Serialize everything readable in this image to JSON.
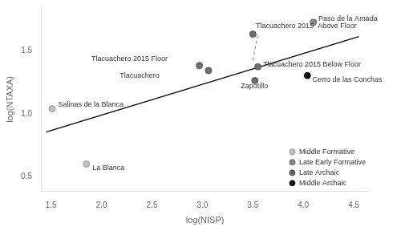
{
  "chart_data": {
    "type": "scatter",
    "xlabel": "log(NISP)",
    "ylabel": "log(NTAXA)",
    "points": [
      {
        "label": "Salinas de la Blanca",
        "x": 1.51,
        "y": 1.04,
        "color": "#c0c0c0",
        "edgecolor": "#888888",
        "category": "Middle Formative",
        "label_x": 1.57,
        "label_y": 1.07
      },
      {
        "label": "La Blanca",
        "x": 1.85,
        "y": 0.6,
        "color": "#c0c0c0",
        "edgecolor": "#888888",
        "category": "Middle Formative",
        "label_x": 1.91,
        "label_y": 0.57
      },
      {
        "label": "Tlacuachero 2015 Floor",
        "x": 2.97,
        "y": 1.385,
        "color": "#707070",
        "edgecolor": "#444444",
        "category": "Late Archaic",
        "label_x": 1.9,
        "label_y": 1.435
      },
      {
        "label": "Tlacuachero",
        "x": 3.06,
        "y": 1.345,
        "color": "#707070",
        "edgecolor": "#444444",
        "category": "Late Archaic",
        "label_x": 2.18,
        "label_y": 1.305
      },
      {
        "label": "Tlacuachero 2015  Above Floor",
        "x": 3.5,
        "y": 1.635,
        "color": "#707070",
        "edgecolor": "#444444",
        "category": "Late Archaic",
        "label_x": 3.53,
        "label_y": 1.7
      },
      {
        "label": "Tlacuachero 2015 Below Floor",
        "x": 3.55,
        "y": 1.375,
        "color": "#707070",
        "edgecolor": "#444444",
        "category": "Late Archaic",
        "label_x": 3.6,
        "label_y": 1.39
      },
      {
        "label": "Zapotillo",
        "x": 3.52,
        "y": 1.265,
        "color": "#707070",
        "edgecolor": "#444444",
        "category": "Late Archaic",
        "label_x": 3.38,
        "label_y": 1.22
      },
      {
        "label": "Cerro de las Conchas",
        "x": 4.04,
        "y": 1.305,
        "color": "#111111",
        "edgecolor": "#111111",
        "category": "Middle Archaic",
        "label_x": 4.09,
        "label_y": 1.27
      },
      {
        "label": "Paso de la Amada",
        "x": 4.1,
        "y": 1.73,
        "color": "#888888",
        "edgecolor": "#555555",
        "category": "Late Early Formative",
        "label_x": 4.15,
        "label_y": 1.755
      }
    ],
    "regression_line": {
      "x": [
        1.45,
        4.55
      ],
      "y": [
        0.855,
        1.615
      ],
      "color": "#000000"
    },
    "dashed_line": {
      "x": [
        3.5,
        3.55
      ],
      "y": [
        1.425,
        1.635
      ],
      "color": "#666666",
      "line_style": "dashed"
    },
    "legend_entries": [
      {
        "name": "Middle Formative",
        "color": "#c0c0c0",
        "edgecolor": "#888888"
      },
      {
        "name": "Late Early Formative",
        "color": "#888888",
        "edgecolor": "#555555"
      },
      {
        "name": "Late Archaic",
        "color": "#606060",
        "edgecolor": "#404040"
      },
      {
        "name": "Middle Archaic",
        "color": "#111111",
        "edgecolor": "#111111"
      }
    ],
    "legend": "lower right",
    "grid": false,
    "xlim": [
      1.4,
      4.65
    ],
    "ylim": [
      0.38,
      1.85
    ],
    "xticks": [
      1.5,
      {
        "value": 2.0,
        "label": "2.0"
      },
      2.5,
      {
        "value": 3.0,
        "label": "3.0"
      },
      3.5,
      {
        "value": 4.0,
        "label": "4.0"
      },
      4.5
    ],
    "yticks": [
      0.5,
      {
        "value": 1.0,
        "label": "1.0"
      },
      1.5
    ]
  }
}
